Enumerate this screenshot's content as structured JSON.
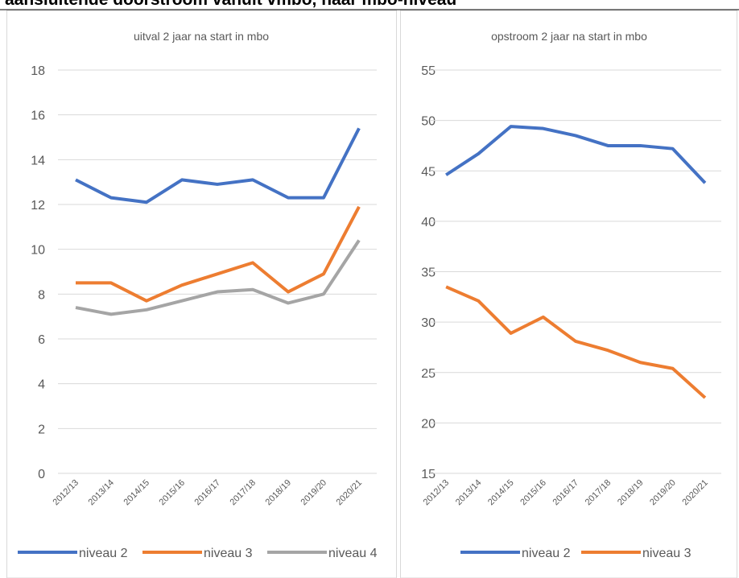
{
  "header": {
    "title": "aansluitende doorstroom vanuit vmbo, naar mbo-niveau"
  },
  "chart_data": [
    {
      "type": "line",
      "title": "uitval 2 jaar na start in mbo",
      "categories": [
        "2012/13",
        "2013/14",
        "2014/15",
        "2015/16",
        "2016/17",
        "2017/18",
        "2018/19",
        "2019/20",
        "2020/21"
      ],
      "series": [
        {
          "name": "niveau 2",
          "color": "#4472c4",
          "values": [
            13.1,
            12.3,
            12.1,
            13.1,
            12.9,
            13.1,
            12.3,
            12.3,
            15.4
          ]
        },
        {
          "name": "niveau 3",
          "color": "#ed7d31",
          "values": [
            8.5,
            8.5,
            7.7,
            8.4,
            8.9,
            9.4,
            8.1,
            8.9,
            11.9
          ]
        },
        {
          "name": "niveau 4",
          "color": "#a5a5a5",
          "values": [
            7.4,
            7.1,
            7.3,
            7.7,
            8.1,
            8.2,
            7.6,
            8.0,
            10.4
          ]
        }
      ],
      "ylim": [
        0,
        18
      ],
      "yticks": [
        0,
        2,
        4,
        6,
        8,
        10,
        12,
        14,
        16,
        18
      ],
      "grid": true,
      "legend": "bottom"
    },
    {
      "type": "line",
      "title": "opstroom 2 jaar na start in mbo",
      "categories": [
        "2012/13",
        "2013/14",
        "2014/15",
        "2015/16",
        "2016/17",
        "2017/18",
        "2018/19",
        "2019/20",
        "2020/21"
      ],
      "series": [
        {
          "name": "niveau 2",
          "color": "#4472c4",
          "values": [
            44.6,
            46.7,
            49.4,
            49.2,
            48.5,
            47.5,
            47.5,
            47.2,
            43.8
          ]
        },
        {
          "name": "niveau 3",
          "color": "#ed7d31",
          "values": [
            33.5,
            32.1,
            28.9,
            30.5,
            28.1,
            27.2,
            26.0,
            25.4,
            22.5
          ]
        }
      ],
      "ylim": [
        15,
        55
      ],
      "yticks": [
        15,
        20,
        25,
        30,
        35,
        40,
        45,
        50,
        55
      ],
      "grid": true,
      "legend": "bottom"
    }
  ]
}
